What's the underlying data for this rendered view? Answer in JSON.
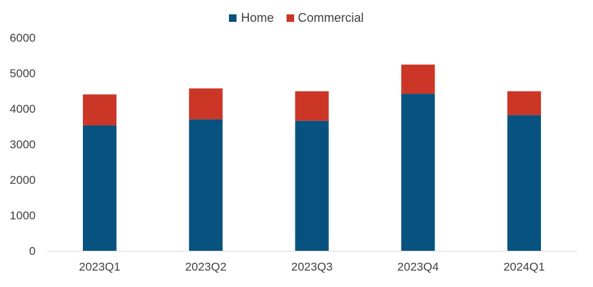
{
  "chart_data": {
    "type": "bar",
    "stacked": true,
    "categories": [
      "2023Q1",
      "2023Q2",
      "2023Q3",
      "2023Q4",
      "2024Q1"
    ],
    "series": [
      {
        "name": "Home",
        "color": "#08527f",
        "values": [
          3530,
          3700,
          3660,
          4420,
          3820
        ]
      },
      {
        "name": "Commercial",
        "color": "#cb3627",
        "values": [
          870,
          870,
          830,
          820,
          670
        ]
      }
    ],
    "ylim": [
      0,
      6000
    ],
    "yticks": [
      0,
      1000,
      2000,
      3000,
      4000,
      5000,
      6000
    ],
    "grid": false,
    "legend_position": "top-center"
  }
}
